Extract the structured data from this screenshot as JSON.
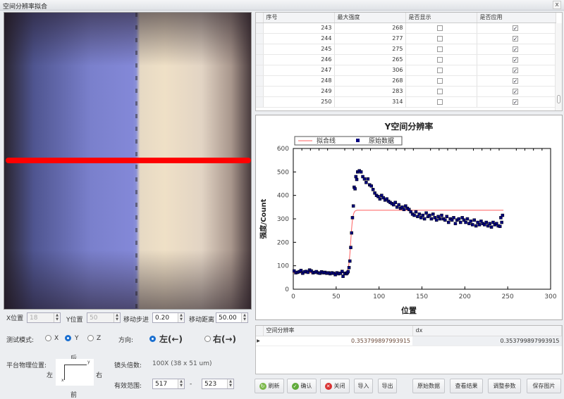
{
  "window": {
    "title": "空间分辨率拟合",
    "close_label": "x"
  },
  "controls": {
    "x_pos_label": "X位置",
    "x_pos_value": "18",
    "y_pos_label": "Y位置",
    "y_pos_value": "50",
    "step_label": "移动步进",
    "step_value": "0.20",
    "distance_label": "移动距离",
    "distance_value": "50.00",
    "mode_label": "测试模式:",
    "mode_options": [
      "X",
      "Y",
      "Z"
    ],
    "mode_selected": "Y",
    "direction_label": "方向:",
    "direction_options": [
      "左(←)",
      "右(→)"
    ],
    "direction_selected": "左(←)",
    "platform_label": "平台物理位置:",
    "platform_back": "后",
    "platform_front": "前",
    "platform_left": "左",
    "platform_right": "右",
    "axis_x": "x",
    "axis_y": "y",
    "lens_label": "镜头倍数:",
    "lens_value": "100X (38 x 51 um)",
    "range_label": "有效范围:",
    "range_from": "517",
    "range_sep": "-",
    "range_to": "523"
  },
  "table": {
    "columns": [
      "序号",
      "最大强度",
      "是否显示",
      "是否应用"
    ],
    "rows": [
      {
        "id": "243",
        "max": "268",
        "show": false,
        "apply": true
      },
      {
        "id": "244",
        "max": "277",
        "show": false,
        "apply": true
      },
      {
        "id": "245",
        "max": "275",
        "show": false,
        "apply": true
      },
      {
        "id": "246",
        "max": "265",
        "show": false,
        "apply": true
      },
      {
        "id": "247",
        "max": "306",
        "show": false,
        "apply": true
      },
      {
        "id": "248",
        "max": "268",
        "show": false,
        "apply": true
      },
      {
        "id": "249",
        "max": "283",
        "show": false,
        "apply": true
      },
      {
        "id": "250",
        "max": "314",
        "show": false,
        "apply": true
      }
    ]
  },
  "result": {
    "columns": [
      "空间分辨率",
      "dx"
    ],
    "row": [
      "0.353799897993915",
      "0.353799897993915"
    ]
  },
  "buttons": {
    "refresh": "刷新",
    "confirm": "确认",
    "close": "关闭",
    "import": "导入",
    "export": "导出",
    "raw": "原始数据",
    "view": "查看结果",
    "adjust": "调整参数",
    "save": "保存图片"
  },
  "chart_data": {
    "type": "scatter",
    "title": "Y空间分辨率",
    "xlabel": "位置",
    "ylabel": "强度/Count",
    "xlim": [
      0,
      300
    ],
    "ylim": [
      0,
      600
    ],
    "xticks": [
      0,
      50,
      100,
      150,
      200,
      250,
      300
    ],
    "yticks": [
      0,
      100,
      200,
      300,
      400,
      500,
      600
    ],
    "legend_position": "top-left",
    "colors": {
      "fit": "#ff6060",
      "raw": "#000080"
    },
    "series": [
      {
        "name": "拟合线",
        "kind": "line",
        "fit": {
          "low": 70,
          "high": 337,
          "center": 67,
          "width": 1.2,
          "x_end": 245
        }
      },
      {
        "name": "原始数据",
        "kind": "scatter",
        "points": [
          [
            1,
            78
          ],
          [
            3,
            70
          ],
          [
            5,
            72
          ],
          [
            7,
            75
          ],
          [
            9,
            80
          ],
          [
            11,
            68
          ],
          [
            13,
            74
          ],
          [
            15,
            76
          ],
          [
            17,
            72
          ],
          [
            19,
            82
          ],
          [
            21,
            78
          ],
          [
            23,
            70
          ],
          [
            25,
            72
          ],
          [
            27,
            75
          ],
          [
            29,
            70
          ],
          [
            31,
            68
          ],
          [
            33,
            74
          ],
          [
            35,
            70
          ],
          [
            37,
            72
          ],
          [
            39,
            68
          ],
          [
            41,
            70
          ],
          [
            43,
            66
          ],
          [
            45,
            70
          ],
          [
            47,
            68
          ],
          [
            49,
            62
          ],
          [
            51,
            70
          ],
          [
            53,
            66
          ],
          [
            55,
            68
          ],
          [
            57,
            76
          ],
          [
            58,
            55
          ],
          [
            60,
            68
          ],
          [
            62,
            66
          ],
          [
            63,
            70
          ],
          [
            64,
            75
          ],
          [
            65,
            92
          ],
          [
            66,
            120
          ],
          [
            67,
            178
          ],
          [
            68,
            240
          ],
          [
            69,
            305
          ],
          [
            70,
            355
          ],
          [
            71,
            435
          ],
          [
            72,
            428
          ],
          [
            73,
            480
          ],
          [
            74,
            468
          ],
          [
            75,
            500
          ],
          [
            77,
            505
          ],
          [
            79,
            500
          ],
          [
            81,
            480
          ],
          [
            83,
            470
          ],
          [
            85,
            455
          ],
          [
            87,
            470
          ],
          [
            89,
            445
          ],
          [
            91,
            440
          ],
          [
            93,
            425
          ],
          [
            95,
            410
          ],
          [
            97,
            400
          ],
          [
            99,
            395
          ],
          [
            101,
            385
          ],
          [
            103,
            400
          ],
          [
            105,
            390
          ],
          [
            107,
            380
          ],
          [
            109,
            385
          ],
          [
            111,
            375
          ],
          [
            113,
            370
          ],
          [
            115,
            365
          ],
          [
            117,
            360
          ],
          [
            119,
            370
          ],
          [
            121,
            350
          ],
          [
            123,
            360
          ],
          [
            125,
            345
          ],
          [
            127,
            350
          ],
          [
            129,
            340
          ],
          [
            131,
            355
          ],
          [
            133,
            345
          ],
          [
            135,
            340
          ],
          [
            137,
            330
          ],
          [
            139,
            320
          ],
          [
            141,
            315
          ],
          [
            143,
            330
          ],
          [
            145,
            310
          ],
          [
            147,
            320
          ],
          [
            149,
            305
          ],
          [
            151,
            315
          ],
          [
            153,
            300
          ],
          [
            155,
            325
          ],
          [
            157,
            310
          ],
          [
            159,
            315
          ],
          [
            161,
            300
          ],
          [
            163,
            320
          ],
          [
            165,
            305
          ],
          [
            167,
            295
          ],
          [
            169,
            310
          ],
          [
            171,
            300
          ],
          [
            173,
            315
          ],
          [
            175,
            300
          ],
          [
            177,
            295
          ],
          [
            179,
            310
          ],
          [
            181,
            285
          ],
          [
            183,
            300
          ],
          [
            185,
            295
          ],
          [
            187,
            305
          ],
          [
            189,
            280
          ],
          [
            191,
            295
          ],
          [
            193,
            300
          ],
          [
            195,
            285
          ],
          [
            197,
            305
          ],
          [
            199,
            295
          ],
          [
            201,
            285
          ],
          [
            203,
            300
          ],
          [
            205,
            280
          ],
          [
            207,
            290
          ],
          [
            209,
            275
          ],
          [
            211,
            295
          ],
          [
            213,
            270
          ],
          [
            215,
            285
          ],
          [
            217,
            275
          ],
          [
            219,
            290
          ],
          [
            221,
            280
          ],
          [
            223,
            275
          ],
          [
            225,
            285
          ],
          [
            227,
            270
          ],
          [
            229,
            280
          ],
          [
            231,
            265
          ],
          [
            233,
            285
          ],
          [
            235,
            275
          ],
          [
            237,
            280
          ],
          [
            239,
            270
          ],
          [
            241,
            268
          ],
          [
            242,
            305
          ],
          [
            243,
            285
          ],
          [
            244,
            315
          ]
        ]
      }
    ]
  }
}
